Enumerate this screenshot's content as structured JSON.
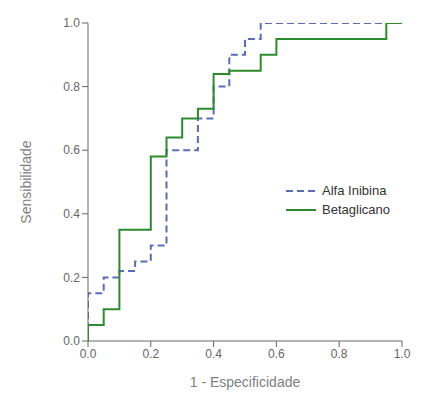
{
  "chart_data": {
    "type": "line",
    "xlabel": "1 - Especificidade",
    "ylabel": "Sensibilidade",
    "xlim": [
      0.0,
      1.0
    ],
    "ylim": [
      0.0,
      1.0
    ],
    "xticks": [
      {
        "value": 0.0,
        "label": "0.0"
      },
      0.2,
      0.4,
      0.6,
      0.8,
      {
        "value": 1.0,
        "label": "1.0"
      }
    ],
    "yticks": [
      {
        "value": 0.0,
        "label": "0.0"
      },
      0.2,
      0.4,
      0.6,
      0.8,
      {
        "value": 1.0,
        "label": "1.0"
      }
    ],
    "legend": "right",
    "series": [
      {
        "name": "Alfa Inibina",
        "color": "#5b6db5",
        "line_style": "dashed",
        "x": [
          0.0,
          0.0,
          0.05,
          0.05,
          0.1,
          0.1,
          0.15,
          0.15,
          0.2,
          0.2,
          0.25,
          0.25,
          0.35,
          0.35,
          0.4,
          0.4,
          0.45,
          0.45,
          0.5,
          0.5,
          0.55,
          0.55,
          1.0
        ],
        "values": [
          0.0,
          0.15,
          0.15,
          0.2,
          0.2,
          0.22,
          0.22,
          0.25,
          0.25,
          0.3,
          0.3,
          0.6,
          0.6,
          0.7,
          0.7,
          0.8,
          0.8,
          0.9,
          0.9,
          0.95,
          0.95,
          1.0,
          1.0
        ]
      },
      {
        "name": "Betaglicano",
        "color": "#2d8a2d",
        "line_style": "solid",
        "x": [
          0.0,
          0.0,
          0.05,
          0.05,
          0.1,
          0.1,
          0.2,
          0.2,
          0.25,
          0.25,
          0.3,
          0.3,
          0.35,
          0.35,
          0.4,
          0.4,
          0.45,
          0.45,
          0.55,
          0.55,
          0.6,
          0.6,
          0.95,
          0.95,
          1.0
        ],
        "values": [
          0.0,
          0.05,
          0.05,
          0.1,
          0.1,
          0.35,
          0.35,
          0.58,
          0.58,
          0.64,
          0.64,
          0.7,
          0.7,
          0.73,
          0.73,
          0.84,
          0.84,
          0.85,
          0.85,
          0.9,
          0.9,
          0.95,
          0.95,
          1.0,
          1.0
        ]
      }
    ]
  }
}
